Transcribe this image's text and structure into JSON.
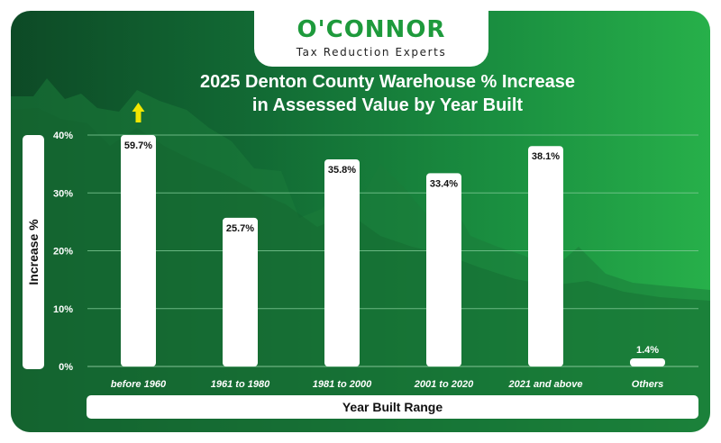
{
  "brand": {
    "name": "O'CONNOR",
    "tagline": "Tax Reduction Experts"
  },
  "colors": {
    "brand_green": "#1e9a3c",
    "bar": "#ffffff",
    "arrow": "#f2e600"
  },
  "chart_data": {
    "type": "bar",
    "title": "2025 Denton County Warehouse % Increase in Assessed Value by Year Built",
    "title_lines": [
      "2025 Denton County Warehouse % Increase",
      "in Assessed Value by Year Built"
    ],
    "xlabel": "Year Built Range",
    "ylabel": "Increase %",
    "categories": [
      "before 1960",
      "1961 to 1980",
      "1981 to 2000",
      "2001 to 2020",
      "2021 and above",
      "Others"
    ],
    "values": [
      59.7,
      25.7,
      35.8,
      33.4,
      38.1,
      1.4
    ],
    "data_labels": [
      "59.7%",
      "25.7%",
      "35.8%",
      "33.4%",
      "38.1%",
      "1.4%"
    ],
    "ylim": [
      0,
      40
    ],
    "yticks": [
      "0%",
      "10%",
      "20%",
      "30%",
      "40%"
    ],
    "overflow_marker": "up-arrow on bars exceeding the axis maximum",
    "grid": true
  }
}
